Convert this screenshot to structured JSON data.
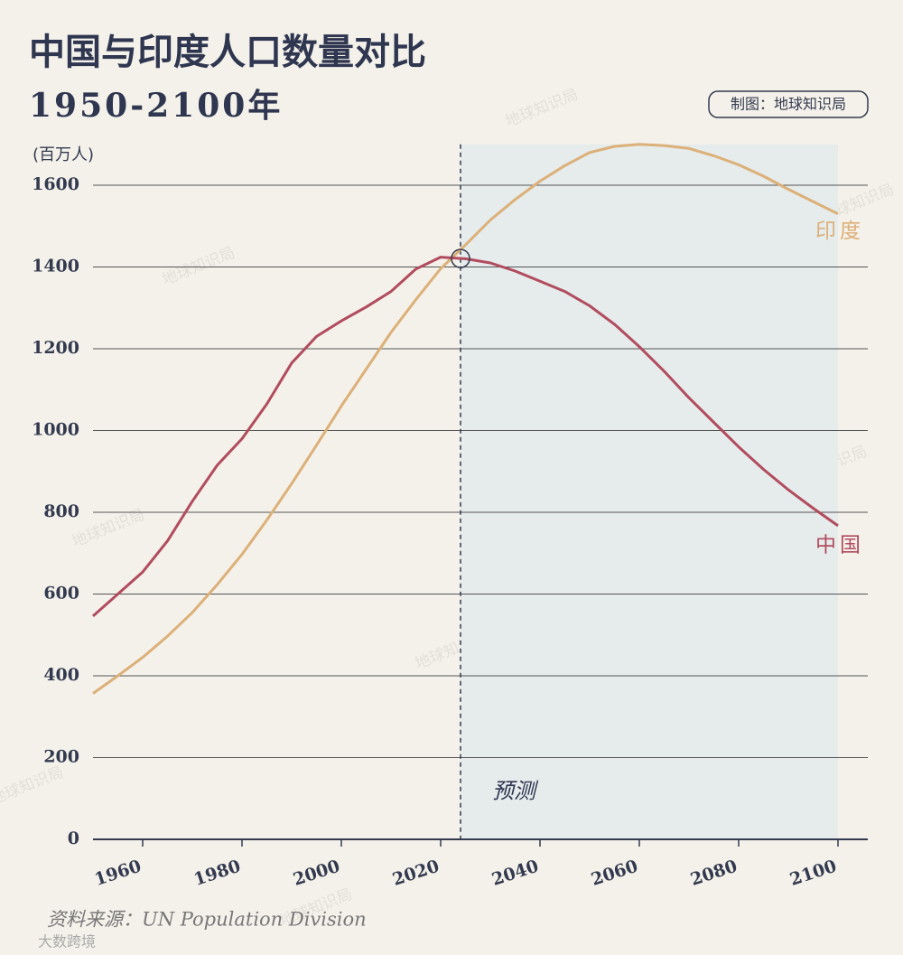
{
  "chart_data": {
    "type": "line",
    "title": "中国与印度人口数量对比",
    "subtitle": "1950-2100年",
    "y_label": "(百万人)",
    "credit": "制图：地球知识局",
    "forecast_label": "预测",
    "forecast_start": 2024,
    "source": "资料来源：UN Population Division",
    "watermark": "地球知识局",
    "logo": "大数跨境",
    "x": [
      1950,
      1955,
      1960,
      1965,
      1970,
      1975,
      1980,
      1985,
      1990,
      1995,
      2000,
      2005,
      2010,
      2015,
      2020,
      2025,
      2030,
      2035,
      2040,
      2045,
      2050,
      2055,
      2060,
      2065,
      2070,
      2075,
      2080,
      2085,
      2090,
      2095,
      2100
    ],
    "series": [
      {
        "name": "印度",
        "color": "#dcb078",
        "values": [
          357,
          400,
          445,
          497,
          555,
          623,
          697,
          781,
          870,
          964,
          1060,
          1150,
          1240,
          1320,
          1396,
          1454,
          1515,
          1565,
          1610,
          1648,
          1680,
          1695,
          1700,
          1697,
          1690,
          1672,
          1650,
          1622,
          1590,
          1560,
          1530
        ]
      },
      {
        "name": "中国",
        "color": "#b14c5e",
        "values": [
          546,
          600,
          654,
          730,
          827,
          915,
          980,
          1065,
          1165,
          1230,
          1268,
          1302,
          1340,
          1395,
          1424,
          1420,
          1410,
          1390,
          1365,
          1340,
          1305,
          1260,
          1205,
          1145,
          1080,
          1020,
          960,
          905,
          855,
          810,
          767
        ]
      }
    ],
    "xlim": [
      1950,
      2106
    ],
    "xticks": [
      1960,
      1980,
      2000,
      2020,
      2040,
      2060,
      2080,
      2100
    ],
    "ylim": [
      0,
      1700
    ],
    "yticks": [
      0,
      200,
      400,
      600,
      800,
      1000,
      1200,
      1400,
      1600
    ],
    "grid": true
  }
}
